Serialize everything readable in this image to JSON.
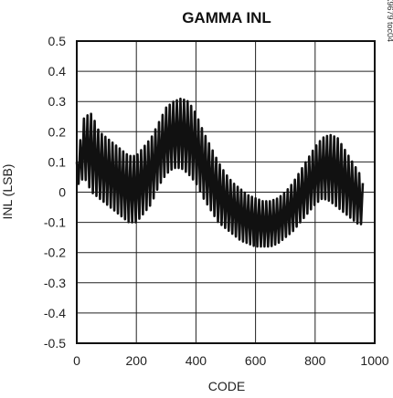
{
  "chart_data": {
    "type": "line",
    "title": "GAMMA INL",
    "xlabel": "CODE",
    "ylabel": "INL (LSB)",
    "part_tag": "MAX9679 toc04",
    "xlim": [
      0,
      1000
    ],
    "ylim": [
      -0.5,
      0.5
    ],
    "x_ticks": [
      0,
      200,
      400,
      600,
      800,
      1000
    ],
    "y_ticks": [
      0.5,
      0.4,
      0.3,
      0.2,
      0.1,
      0,
      -0.1,
      -0.2,
      -0.3,
      -0.4,
      -0.5
    ],
    "y_tick_labels": [
      "0.5",
      "0.4",
      "0.3",
      "0.2",
      "0.1",
      "0",
      "-0.1",
      "-0.2",
      "-0.3",
      "-0.4",
      "-0.5"
    ],
    "grid": true,
    "line_color": "#111111",
    "series": [
      {
        "x": [
          0,
          25,
          50,
          75,
          100,
          125,
          150,
          175,
          200,
          225,
          250,
          275,
          300,
          325,
          350,
          375,
          400,
          425,
          450,
          475,
          500,
          525,
          550,
          575,
          600,
          625,
          650,
          675,
          700,
          725,
          750,
          775,
          800,
          825,
          850,
          875,
          900,
          925,
          950,
          960
        ],
        "upper": [
          0.1,
          0.25,
          0.26,
          0.2,
          0.18,
          0.16,
          0.14,
          0.12,
          0.12,
          0.15,
          0.18,
          0.23,
          0.28,
          0.3,
          0.31,
          0.3,
          0.26,
          0.2,
          0.15,
          0.1,
          0.06,
          0.03,
          0.01,
          -0.01,
          -0.02,
          -0.03,
          -0.03,
          -0.02,
          0.0,
          0.03,
          0.07,
          0.11,
          0.15,
          0.18,
          0.19,
          0.18,
          0.14,
          0.1,
          0.06,
          0.03
        ],
        "lower": [
          0.02,
          0.05,
          0.0,
          -0.02,
          -0.04,
          -0.06,
          -0.08,
          -0.1,
          -0.1,
          -0.07,
          -0.04,
          0.02,
          0.06,
          0.08,
          0.08,
          0.06,
          0.03,
          -0.02,
          -0.06,
          -0.1,
          -0.12,
          -0.14,
          -0.16,
          -0.17,
          -0.18,
          -0.18,
          -0.18,
          -0.17,
          -0.15,
          -0.13,
          -0.1,
          -0.07,
          -0.04,
          -0.02,
          -0.03,
          -0.05,
          -0.07,
          -0.09,
          -0.11,
          -0.1
        ]
      }
    ]
  }
}
